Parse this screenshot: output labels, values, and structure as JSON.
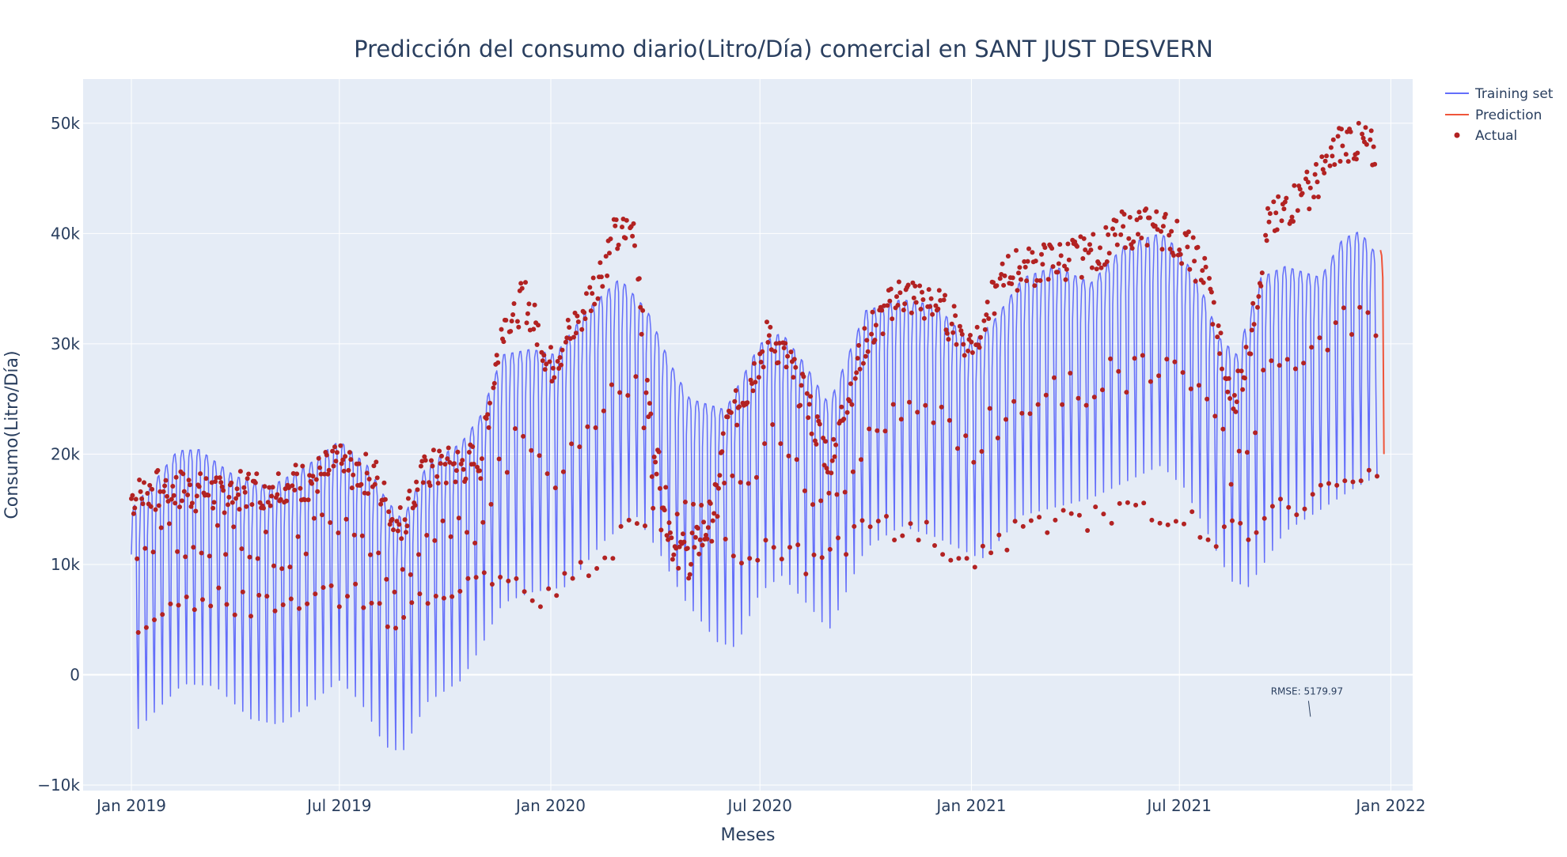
{
  "chart_data": {
    "type": "line",
    "title": "Predicción del consumo diario(Litro/Día) comercial en SANT JUST DESVERN",
    "xlabel": "Meses",
    "ylabel": "Consumo(Litro/Día)",
    "x_range": [
      "2018-11-20",
      "2022-01-20"
    ],
    "ylim": [
      -10500,
      54000
    ],
    "x_ticks": [
      {
        "date": "2019-01-01",
        "label": "Jan 2019"
      },
      {
        "date": "2019-07-01",
        "label": "Jul 2019"
      },
      {
        "date": "2020-01-01",
        "label": "Jan 2020"
      },
      {
        "date": "2020-07-01",
        "label": "Jul 2020"
      },
      {
        "date": "2021-01-01",
        "label": "Jan 2021"
      },
      {
        "date": "2021-07-01",
        "label": "Jul 2021"
      },
      {
        "date": "2022-01-01",
        "label": "Jan 2022"
      }
    ],
    "y_ticks": [
      {
        "value": -10000,
        "label": "−10k"
      },
      {
        "value": 0,
        "label": "0"
      },
      {
        "value": 10000,
        "label": "10k"
      },
      {
        "value": 20000,
        "label": "20k"
      },
      {
        "value": 30000,
        "label": "30k"
      },
      {
        "value": 40000,
        "label": "40k"
      },
      {
        "value": 50000,
        "label": "50k"
      }
    ],
    "grid": true,
    "legend_position": "top-right",
    "colors": {
      "training": "#636efa",
      "prediction": "#ef553b",
      "actual": "#b22222",
      "plot_bg": "#e5ecf6",
      "text": "#2a3f5f"
    },
    "series": [
      {
        "name": "Training set",
        "kind": "line",
        "note": "daily fitted values; weekly cycle between an upper envelope (weekdays) and a lower envelope (weekends)",
        "upper_envelope": [
          [
            "2019-01-01",
            15000
          ],
          [
            "2019-01-21",
            17500
          ],
          [
            "2019-02-10",
            20300
          ],
          [
            "2019-03-01",
            20400
          ],
          [
            "2019-04-01",
            18000
          ],
          [
            "2019-05-01",
            17000
          ],
          [
            "2019-06-01",
            18800
          ],
          [
            "2019-07-01",
            21200
          ],
          [
            "2019-07-25",
            19000
          ],
          [
            "2019-08-10",
            16000
          ],
          [
            "2019-08-25",
            14000
          ],
          [
            "2019-09-15",
            19000
          ],
          [
            "2019-10-15",
            21000
          ],
          [
            "2019-11-01",
            23500
          ],
          [
            "2019-11-20",
            29000
          ],
          [
            "2019-12-15",
            29500
          ],
          [
            "2020-01-05",
            29000
          ],
          [
            "2020-02-01",
            33000
          ],
          [
            "2020-03-01",
            35900
          ],
          [
            "2020-03-25",
            33000
          ],
          [
            "2020-04-15",
            28000
          ],
          [
            "2020-05-01",
            25000
          ],
          [
            "2020-06-01",
            24000
          ],
          [
            "2020-07-01",
            30000
          ],
          [
            "2020-07-20",
            31000
          ],
          [
            "2020-08-10",
            28000
          ],
          [
            "2020-08-30",
            24500
          ],
          [
            "2020-10-01",
            33000
          ],
          [
            "2020-11-01",
            34000
          ],
          [
            "2020-12-01",
            33500
          ],
          [
            "2021-01-01",
            30000
          ],
          [
            "2021-01-20",
            32000
          ],
          [
            "2021-02-15",
            36000
          ],
          [
            "2021-03-15",
            37000
          ],
          [
            "2021-04-15",
            35500
          ],
          [
            "2021-05-15",
            39000
          ],
          [
            "2021-06-15",
            40000
          ],
          [
            "2021-07-01",
            38500
          ],
          [
            "2021-07-20",
            35000
          ],
          [
            "2021-08-05",
            30500
          ],
          [
            "2021-08-20",
            29000
          ],
          [
            "2021-09-10",
            36000
          ],
          [
            "2021-10-01",
            37000
          ],
          [
            "2021-11-01",
            36000
          ],
          [
            "2021-11-20",
            39500
          ],
          [
            "2021-12-05",
            40200
          ],
          [
            "2021-12-20",
            38000
          ]
        ],
        "lower_envelope": [
          [
            "2019-01-01",
            -5500
          ],
          [
            "2019-01-20",
            -3500
          ],
          [
            "2019-02-15",
            -800
          ],
          [
            "2019-03-15",
            -1000
          ],
          [
            "2019-04-15",
            -4000
          ],
          [
            "2019-05-10",
            -4500
          ],
          [
            "2019-06-01",
            -3000
          ],
          [
            "2019-07-01",
            -500
          ],
          [
            "2019-07-20",
            -2500
          ],
          [
            "2019-08-10",
            -6500
          ],
          [
            "2019-08-25",
            -7000
          ],
          [
            "2019-09-15",
            -2500
          ],
          [
            "2019-10-15",
            -500
          ],
          [
            "2019-11-01",
            2500
          ],
          [
            "2019-11-20",
            6500
          ],
          [
            "2019-12-15",
            7500
          ],
          [
            "2020-01-15",
            8000
          ],
          [
            "2020-02-15",
            12000
          ],
          [
            "2020-03-15",
            14500
          ],
          [
            "2020-04-05",
            11000
          ],
          [
            "2020-04-25",
            7000
          ],
          [
            "2020-05-25",
            3000
          ],
          [
            "2020-06-10",
            2500
          ],
          [
            "2020-07-01",
            7500
          ],
          [
            "2020-07-20",
            9000
          ],
          [
            "2020-08-15",
            6000
          ],
          [
            "2020-08-30",
            4000
          ],
          [
            "2020-10-01",
            11500
          ],
          [
            "2020-11-01",
            13500
          ],
          [
            "2020-12-01",
            12500
          ],
          [
            "2021-01-10",
            10500
          ],
          [
            "2021-02-15",
            14500
          ],
          [
            "2021-04-15",
            16000
          ],
          [
            "2021-05-15",
            17500
          ],
          [
            "2021-06-15",
            19000
          ],
          [
            "2021-07-05",
            17000
          ],
          [
            "2021-07-25",
            13000
          ],
          [
            "2021-08-15",
            8500
          ],
          [
            "2021-08-30",
            8000
          ],
          [
            "2021-10-01",
            13000
          ],
          [
            "2021-11-01",
            15000
          ],
          [
            "2021-12-01",
            17000
          ],
          [
            "2021-12-20",
            18000
          ]
        ]
      },
      {
        "name": "Prediction",
        "kind": "line",
        "points": [
          [
            "2021-12-23",
            38500
          ],
          [
            "2021-12-24",
            38000
          ],
          [
            "2021-12-25",
            36000
          ],
          [
            "2021-12-26",
            20000
          ]
        ]
      },
      {
        "name": "Actual",
        "kind": "scatter",
        "note": "daily observed values; weekday cluster (upper) and weekend cluster (lower)",
        "upper_envelope": [
          [
            "2019-01-01",
            16000
          ],
          [
            "2019-02-01",
            17000
          ],
          [
            "2019-03-01",
            16500
          ],
          [
            "2019-04-01",
            16500
          ],
          [
            "2019-05-01",
            17000
          ],
          [
            "2019-06-01",
            17500
          ],
          [
            "2019-07-01",
            19000
          ],
          [
            "2019-08-01",
            18000
          ],
          [
            "2019-08-20",
            13000
          ],
          [
            "2019-09-15",
            18500
          ],
          [
            "2019-10-15",
            19000
          ],
          [
            "2019-11-01",
            19500
          ],
          [
            "2019-11-20",
            32000
          ],
          [
            "2019-12-10",
            34000
          ],
          [
            "2020-01-01",
            28000
          ],
          [
            "2020-02-01",
            33500
          ],
          [
            "2020-02-25",
            39500
          ],
          [
            "2020-03-15",
            40500
          ],
          [
            "2020-03-25",
            25000
          ],
          [
            "2020-04-15",
            12000
          ],
          [
            "2020-05-01",
            10500
          ],
          [
            "2020-05-20",
            14000
          ],
          [
            "2020-06-01",
            22000
          ],
          [
            "2020-06-20",
            26000
          ],
          [
            "2020-07-10",
            31000
          ],
          [
            "2020-08-01",
            27000
          ],
          [
            "2020-08-30",
            19500
          ],
          [
            "2020-10-01",
            30500
          ],
          [
            "2020-11-01",
            34500
          ],
          [
            "2020-12-01",
            33500
          ],
          [
            "2021-01-01",
            30000
          ],
          [
            "2021-02-01",
            36500
          ],
          [
            "2021-03-15",
            37500
          ],
          [
            "2021-04-15",
            38000
          ],
          [
            "2021-05-15",
            40500
          ],
          [
            "2021-06-15",
            40500
          ],
          [
            "2021-07-05",
            39000
          ],
          [
            "2021-07-25",
            36000
          ],
          [
            "2021-08-15",
            24500
          ],
          [
            "2021-08-30",
            29000
          ],
          [
            "2021-09-15",
            40500
          ],
          [
            "2021-10-15",
            43500
          ],
          [
            "2021-11-01",
            45000
          ],
          [
            "2021-11-20",
            48500
          ],
          [
            "2021-12-10",
            48000
          ],
          [
            "2021-12-20",
            47000
          ]
        ],
        "lower_envelope": [
          [
            "2019-01-01",
            4500
          ],
          [
            "2019-02-01",
            6500
          ],
          [
            "2019-03-01",
            7000
          ],
          [
            "2019-04-15",
            6500
          ],
          [
            "2019-05-15",
            6000
          ],
          [
            "2019-06-15",
            7500
          ],
          [
            "2019-07-15",
            7000
          ],
          [
            "2019-08-15",
            5000
          ],
          [
            "2019-09-15",
            7500
          ],
          [
            "2019-10-15",
            7500
          ],
          [
            "2019-11-20",
            8500
          ],
          [
            "2019-12-15",
            7000
          ],
          [
            "2020-01-15",
            8500
          ],
          [
            "2020-02-15",
            10500
          ],
          [
            "2020-03-15",
            14000
          ],
          [
            "2020-04-15",
            14500
          ],
          [
            "2020-05-15",
            15000
          ],
          [
            "2020-06-15",
            11000
          ],
          [
            "2020-07-15",
            11500
          ],
          [
            "2020-08-15",
            10000
          ],
          [
            "2020-09-01",
            11000
          ],
          [
            "2020-10-01",
            13000
          ],
          [
            "2020-11-01",
            13500
          ],
          [
            "2020-12-01",
            12500
          ],
          [
            "2021-01-05",
            10000
          ],
          [
            "2021-02-15",
            13500
          ],
          [
            "2021-04-01",
            14500
          ],
          [
            "2021-05-01",
            14000
          ],
          [
            "2021-06-01",
            15000
          ],
          [
            "2021-07-01",
            14500
          ],
          [
            "2021-08-01",
            12500
          ],
          [
            "2021-09-01",
            13500
          ],
          [
            "2021-10-01",
            15000
          ],
          [
            "2021-11-01",
            16500
          ],
          [
            "2021-12-15",
            17500
          ]
        ]
      }
    ],
    "annotations": [
      {
        "text": "RMSE: 5179.97",
        "x": "2021-10-20",
        "y": -1800,
        "arrow_to": [
          "2021-10-23",
          -3800
        ]
      }
    ]
  }
}
